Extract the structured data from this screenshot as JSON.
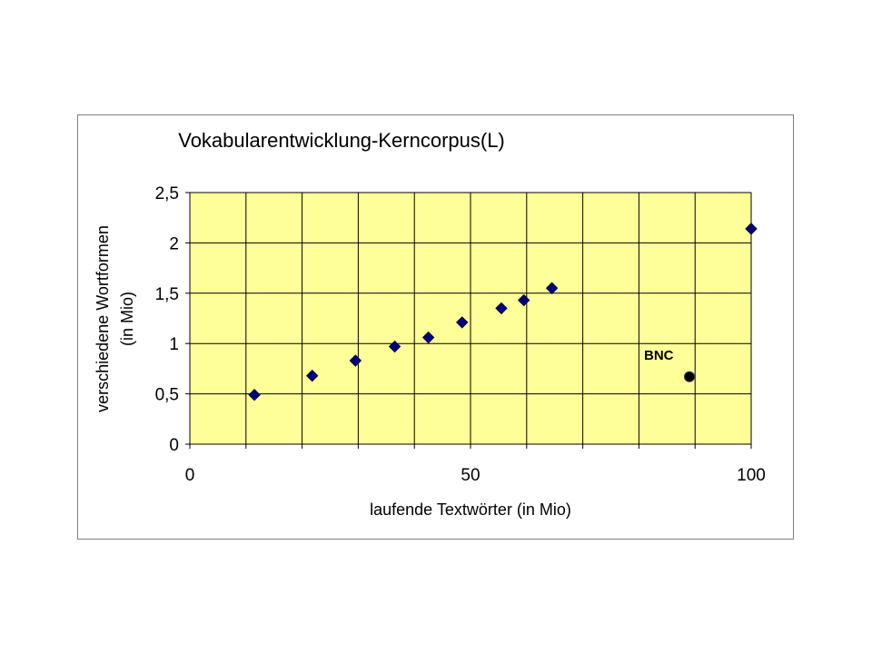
{
  "chart_data": {
    "type": "scatter",
    "title": "Vokabularentwicklung-Kerncorpus(L)",
    "xlabel": "laufende Textwörter (in Mio)",
    "ylabel": [
      "verschiedene Wortformen",
      "(in Mio)"
    ],
    "xlim": [
      0,
      100
    ],
    "ylim": [
      0,
      2.5
    ],
    "x_ticks": [
      0,
      50,
      100
    ],
    "x_tick_labels": [
      "0",
      "50",
      "100"
    ],
    "x_gridlines": [
      0,
      10,
      20,
      30,
      40,
      50,
      60,
      70,
      80,
      90,
      100
    ],
    "y_ticks": [
      0,
      0.5,
      1,
      1.5,
      2,
      2.5
    ],
    "y_tick_labels": [
      "0",
      "0,5",
      "1",
      "1,5",
      "2",
      "2,5"
    ],
    "grid": true,
    "legend": "none",
    "colors": {
      "plot_background": "#ffff99",
      "grid": "#000000",
      "series_marker": "#000080",
      "reference_marker": "#000000"
    },
    "series": [
      {
        "marker": "diamond",
        "points": [
          {
            "x": 11.5,
            "y": 0.49
          },
          {
            "x": 21.8,
            "y": 0.68
          },
          {
            "x": 29.5,
            "y": 0.83
          },
          {
            "x": 36.5,
            "y": 0.97
          },
          {
            "x": 42.5,
            "y": 1.06
          },
          {
            "x": 48.5,
            "y": 1.21
          },
          {
            "x": 55.5,
            "y": 1.35
          },
          {
            "x": 59.5,
            "y": 1.43
          },
          {
            "x": 64.5,
            "y": 1.55
          },
          {
            "x": 100,
            "y": 2.14
          }
        ]
      }
    ],
    "annotations": [
      {
        "text": "BNC",
        "x": 89,
        "y": 0.67,
        "marker": "circle"
      }
    ]
  }
}
